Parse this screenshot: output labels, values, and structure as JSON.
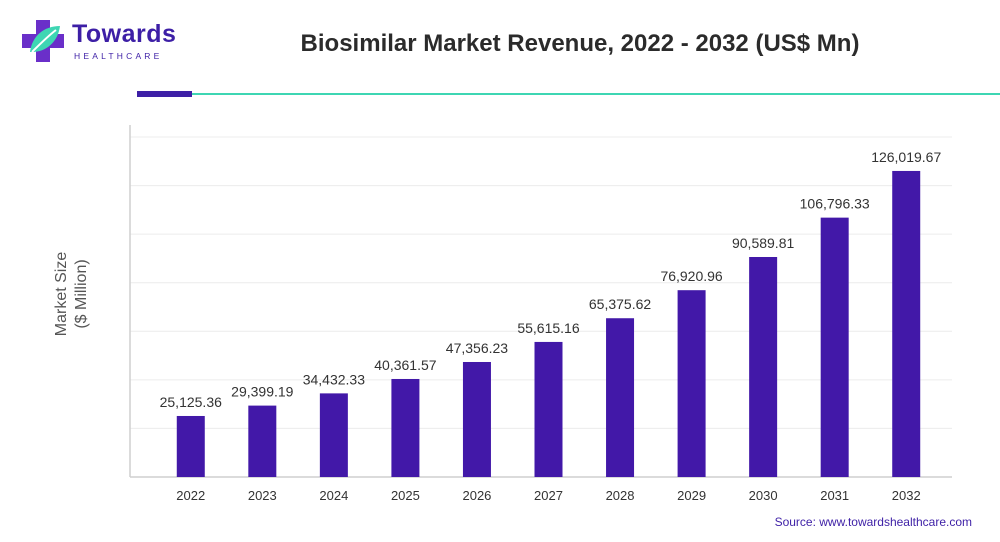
{
  "brand": {
    "name": "Towards",
    "subtitle": "HEALTHCARE",
    "icon": "health-cross-leaf-icon",
    "primary_color": "#3d1fa6",
    "accent_color": "#3ed6b3"
  },
  "source": "Source: www.towardshealthcare.com",
  "chart_data": {
    "type": "bar",
    "title": "Biosimilar Market Revenue, 2022 - 2032 (US$ Mn)",
    "xlabel": "",
    "ylabel": [
      "Market Size",
      "($ Million)"
    ],
    "categories": [
      "2022",
      "2023",
      "2024",
      "2025",
      "2026",
      "2027",
      "2028",
      "2029",
      "2030",
      "2031",
      "2032"
    ],
    "values": [
      25125.36,
      29399.19,
      34432.33,
      40361.57,
      47356.23,
      55615.16,
      65375.62,
      76920.96,
      90589.81,
      106796.33,
      126019.67
    ],
    "value_labels": [
      "25,125.36",
      "29,399.19",
      "34,432.33",
      "40,361.57",
      "47,356.23",
      "55,615.16",
      "65,375.62",
      "76,920.96",
      "90,589.81",
      "106,796.33",
      "126,019.67"
    ],
    "ylim": [
      0,
      140000
    ],
    "y_gridlines": [
      20000,
      40000,
      60000,
      80000,
      100000,
      120000,
      140000
    ],
    "grid": true,
    "bar_color": "#4218a8"
  }
}
